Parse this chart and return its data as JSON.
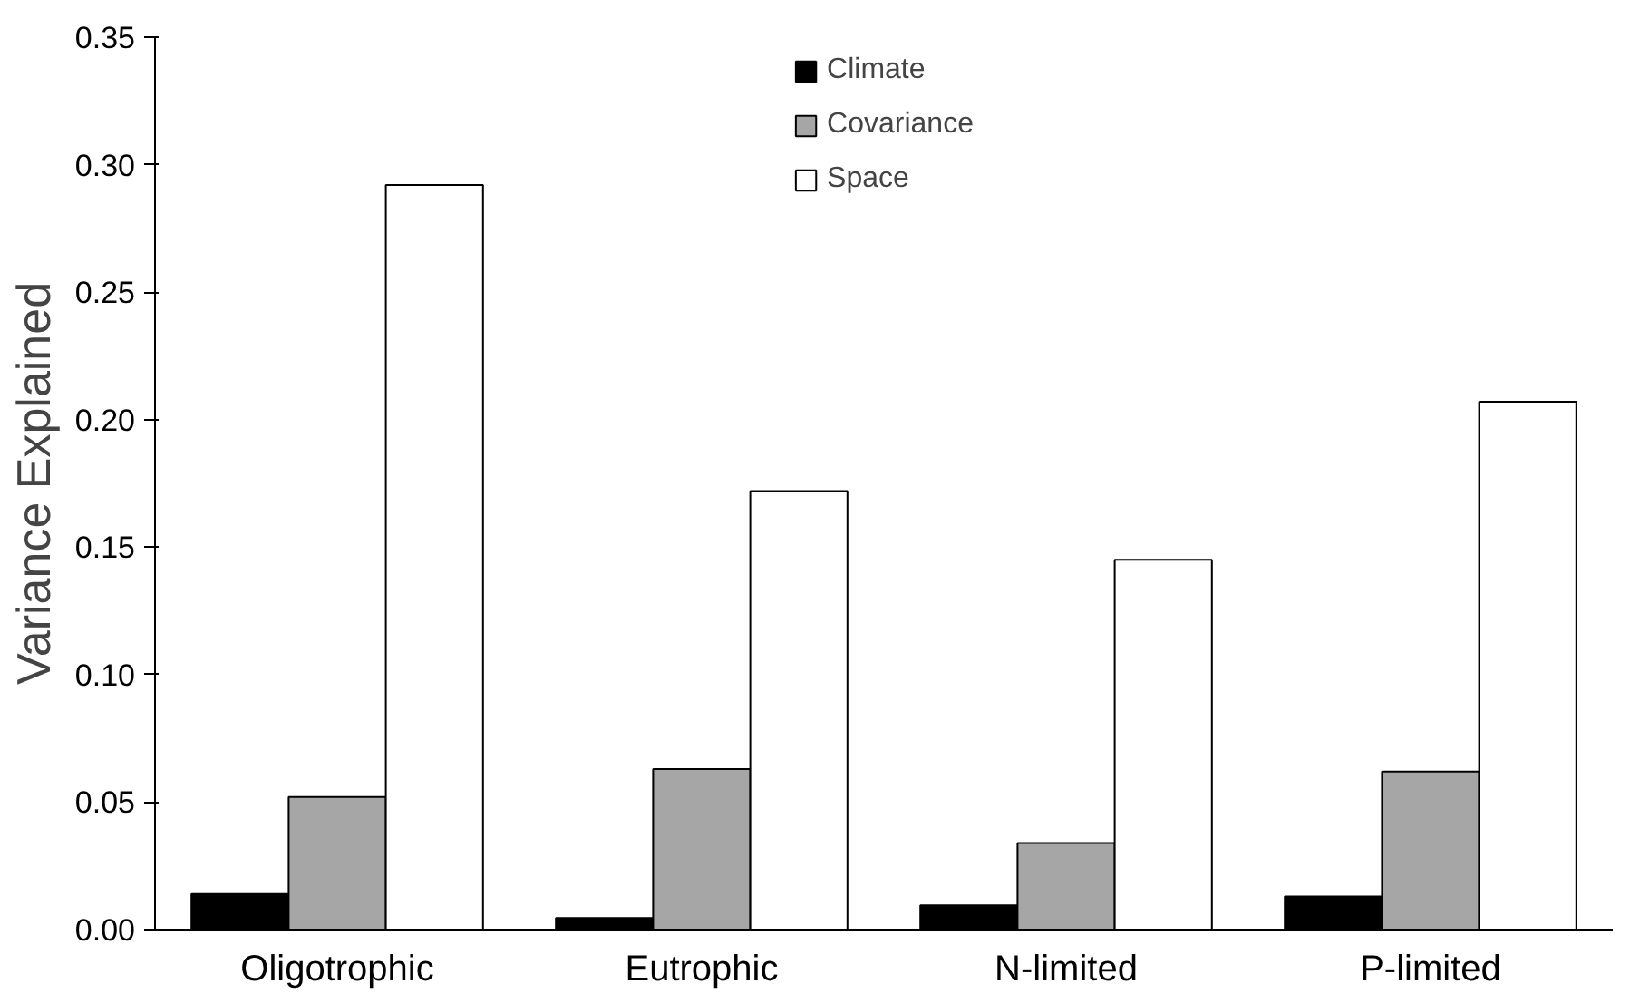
{
  "chart_data": {
    "type": "bar",
    "ylabel": "Variance Explained",
    "categories": [
      "Oligotrophic",
      "Eutrophic",
      "N-limited",
      "P-limited"
    ],
    "series": [
      {
        "name": "Climate",
        "color": "#000000",
        "values": [
          0.014,
          0.0045,
          0.0095,
          0.013
        ]
      },
      {
        "name": "Covariance",
        "color": "#a6a6a6",
        "values": [
          0.052,
          0.063,
          0.034,
          0.062
        ]
      },
      {
        "name": "Space",
        "color": "#ffffff",
        "values": [
          0.292,
          0.172,
          0.145,
          0.207
        ]
      }
    ],
    "ylim": [
      0,
      0.35
    ],
    "yticks": [
      {
        "value": 0,
        "label": "0.00"
      },
      {
        "value": 0.05,
        "label": "0.05"
      },
      {
        "value": 0.1,
        "label": "0.10"
      },
      {
        "value": 0.15,
        "label": "0.15"
      },
      {
        "value": 0.2,
        "label": "0.20"
      },
      {
        "value": 0.25,
        "label": "0.25"
      },
      {
        "value": 0.3,
        "label": "0.30"
      },
      {
        "value": 0.35,
        "label": "0.35"
      }
    ],
    "grid": false,
    "legend": "top"
  }
}
